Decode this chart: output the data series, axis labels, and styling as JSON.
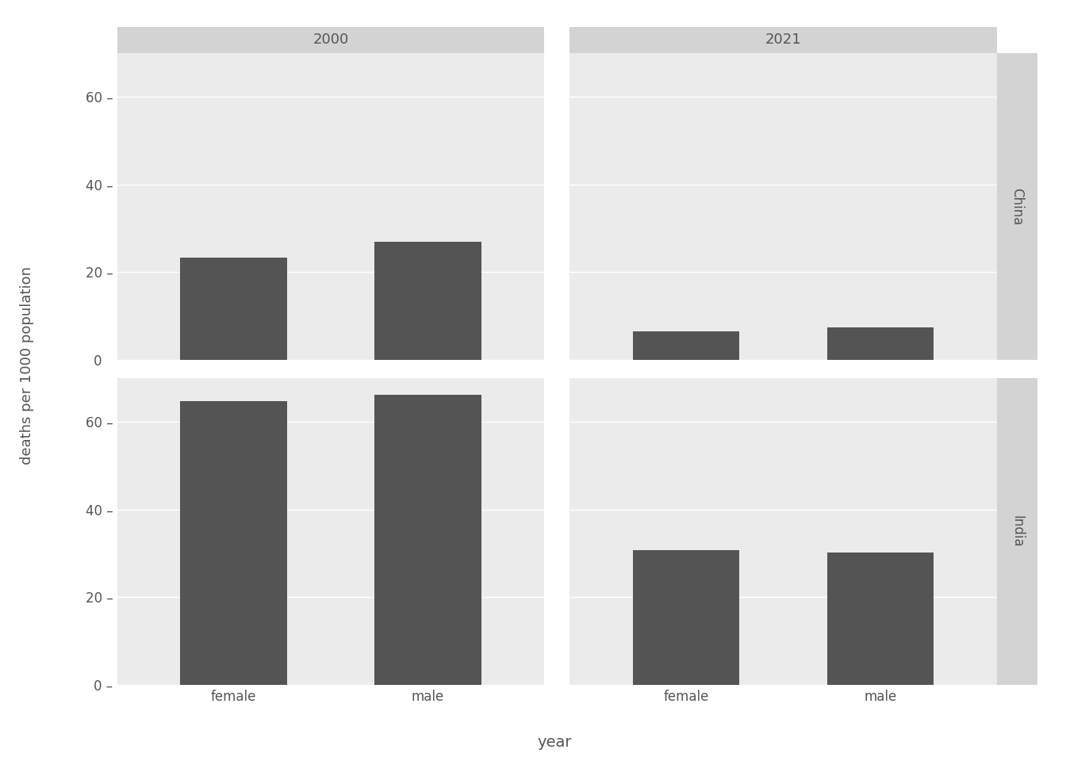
{
  "xlabel": "year",
  "ylabel": "deaths per 1000 population",
  "bar_color": "#545454",
  "background_color": "#ebebeb",
  "strip_top_color": "#d3d3d3",
  "strip_right_color": "#d3d3d3",
  "years": [
    "2000",
    "2021"
  ],
  "countries": [
    "China",
    "India"
  ],
  "sexes": [
    "female",
    "male"
  ],
  "data": {
    "China": {
      "2000": {
        "female": 23.3,
        "male": 27.0
      },
      "2021": {
        "female": 6.5,
        "male": 7.5
      }
    },
    "India": {
      "2000": {
        "female": 64.8,
        "male": 66.3
      },
      "2021": {
        "female": 30.8,
        "male": 30.3
      }
    }
  },
  "ylim": [
    0,
    70
  ],
  "yticks": [
    0,
    20,
    40,
    60
  ],
  "strip_label_fontsize": 13,
  "axis_label_fontsize": 14,
  "tick_label_fontsize": 12,
  "country_label_fontsize": 12,
  "grid_color": "#ffffff",
  "tick_color": "#555555",
  "label_color": "#555555"
}
